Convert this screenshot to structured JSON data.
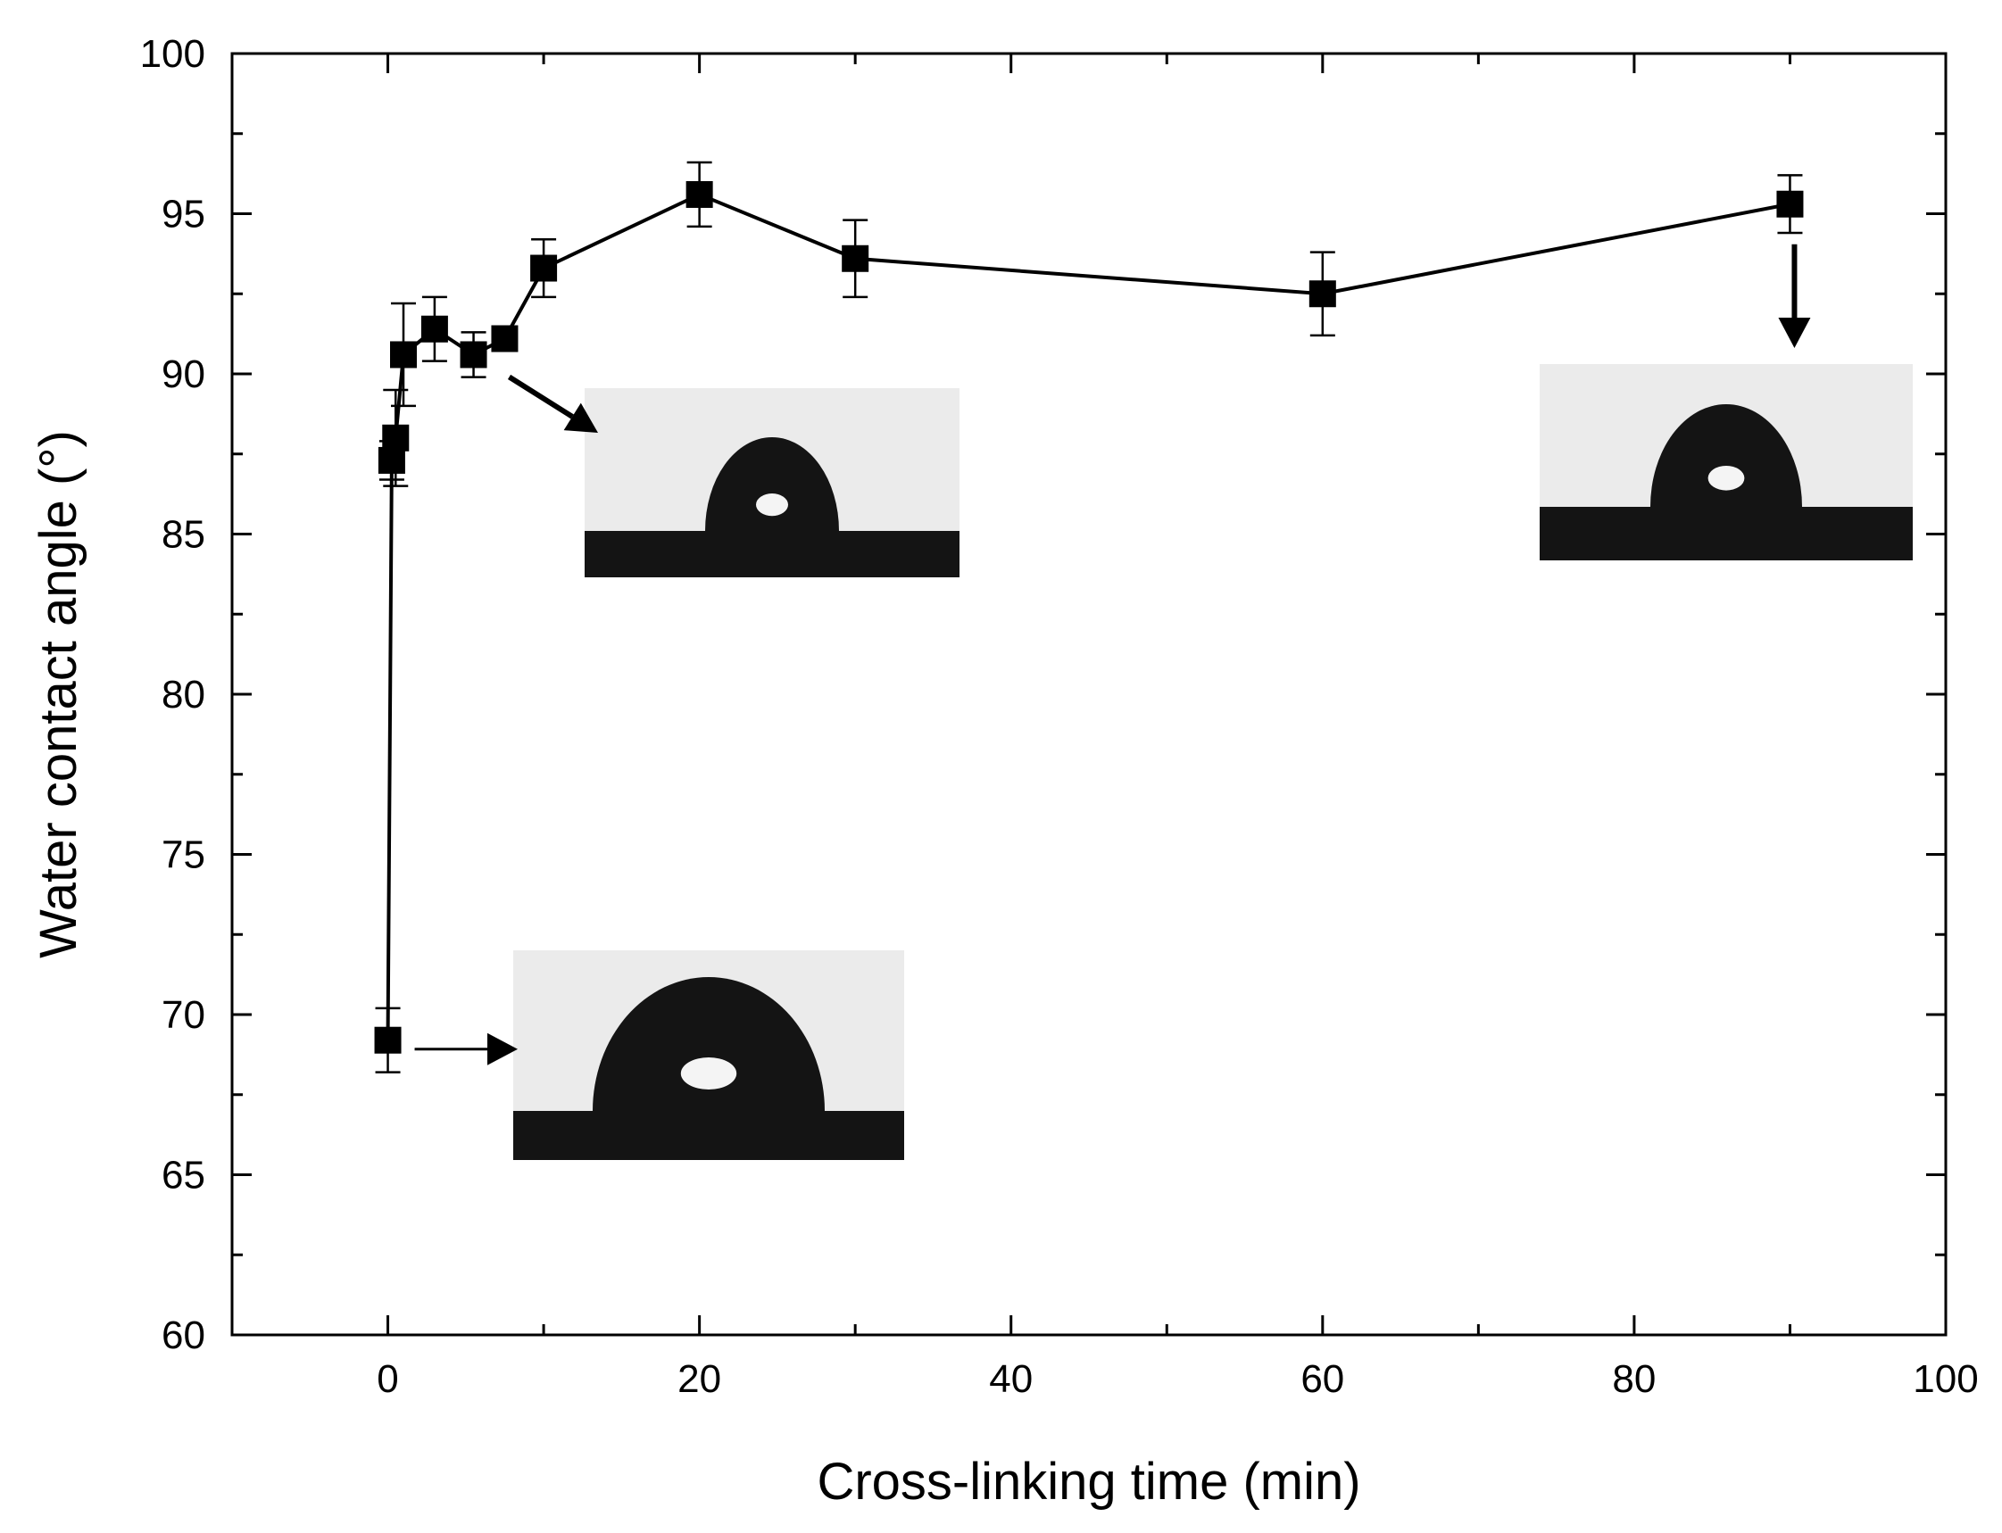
{
  "chart_data": {
    "type": "scatter",
    "title": "",
    "xlabel": "Cross-linking time (min)",
    "ylabel": "Water contact angle (°)",
    "xlim": [
      -10,
      100
    ],
    "ylim": [
      60,
      100
    ],
    "x_ticks": [
      0,
      20,
      40,
      60,
      80,
      100
    ],
    "y_ticks": [
      60,
      65,
      70,
      75,
      80,
      85,
      90,
      95,
      100
    ],
    "x_tick_labels": [
      "0",
      "20",
      "40",
      "60",
      "80",
      "100"
    ],
    "y_tick_labels": [
      "60",
      "65",
      "70",
      "75",
      "80",
      "85",
      "90",
      "95",
      "100"
    ],
    "grid": false,
    "legend": "none",
    "marker": "filled-square",
    "line": "connected",
    "series": [
      {
        "name": "Water contact angle",
        "x": [
          0,
          0.25,
          0.5,
          1,
          3,
          5.5,
          7.5,
          10,
          20,
          30,
          60,
          90
        ],
        "y": [
          69.2,
          87.3,
          88.0,
          90.6,
          91.4,
          90.6,
          91.1,
          93.3,
          95.6,
          93.6,
          92.5,
          95.3
        ],
        "error": [
          1.0,
          0.6,
          1.5,
          1.6,
          1.0,
          0.7,
          0.0,
          0.9,
          1.0,
          1.2,
          1.3,
          0.9
        ]
      }
    ],
    "annotations": [
      {
        "type": "droplet-image",
        "points_to_x": 0,
        "points_to_y": 69.2,
        "arrow": "right"
      },
      {
        "type": "droplet-image",
        "points_to_x": 5.5,
        "points_to_y": 90.6,
        "arrow": "down-right"
      },
      {
        "type": "droplet-image",
        "points_to_x": 90,
        "points_to_y": 95.3,
        "arrow": "down"
      }
    ],
    "colors": {
      "marker": "#000000",
      "line": "#000000",
      "droplet": "#141414",
      "inset_bg": "#ebebeb"
    }
  }
}
